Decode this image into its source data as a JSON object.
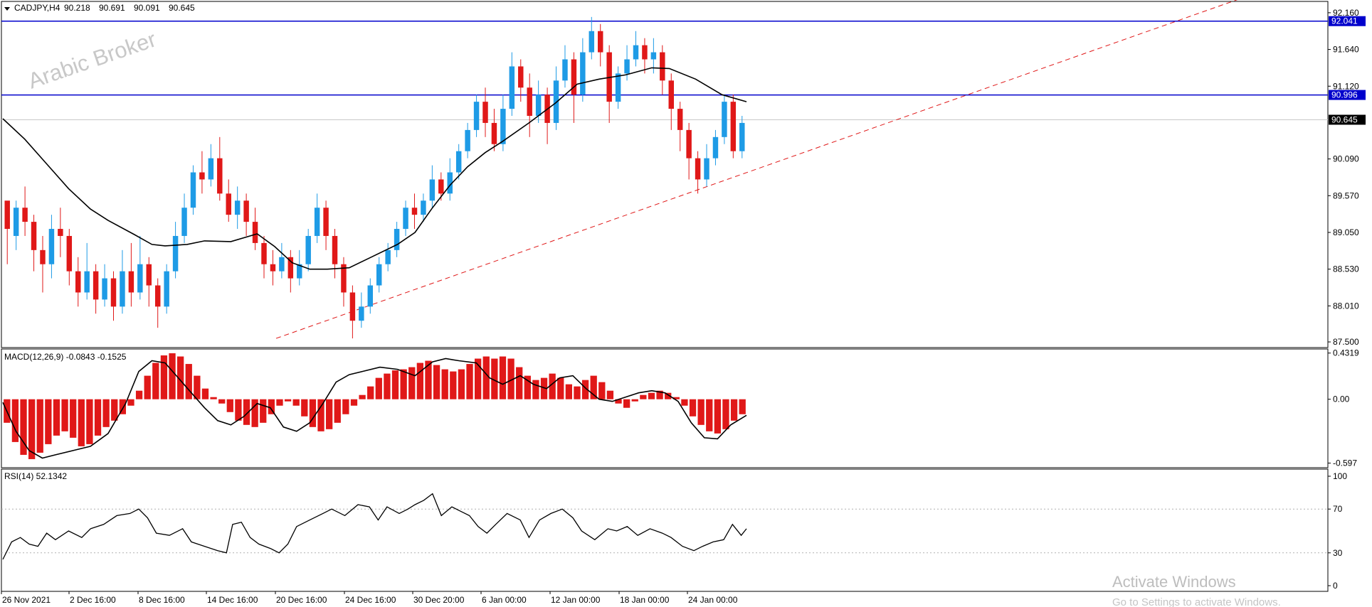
{
  "header": {
    "menu_icon": "triangle-down-icon",
    "symbol": "CADJPY,H4",
    "open": "90.218",
    "high": "90.691",
    "low": "90.091",
    "close": "90.645"
  },
  "watermark": "Arabic Broker",
  "activate_windows": {
    "title": "Activate Windows",
    "subtitle": "Go to Settings to activate Windows."
  },
  "colors": {
    "up": "#1e9be6",
    "down": "#e01818",
    "ma": "#000000",
    "hline": "#0000cc",
    "trendline": "#e01818",
    "macd_hist": "#e01818",
    "badge_blue": "#0000cc",
    "badge_black": "#000000"
  },
  "chart_data": [
    {
      "type": "candlestick",
      "panel": "price",
      "title": "CADJPY,H4",
      "y_ticks": [
        "92.160",
        "91.640",
        "91.120",
        "90.090",
        "89.570",
        "89.050",
        "88.530",
        "88.010",
        "87.500"
      ],
      "ylim": [
        87.42,
        92.32
      ],
      "x_ticks": [
        "26 Nov 2021",
        "2 Dec 16:00",
        "8 Dec 16:00",
        "14 Dec 16:00",
        "20 Dec 16:00",
        "24 Dec 16:00",
        "30 Dec 20:00",
        "6 Jan 00:00",
        "12 Jan 00:00",
        "18 Jan 00:00",
        "24 Jan 00:00"
      ],
      "horizontal_lines": [
        {
          "value": 92.041,
          "label": "92.041"
        },
        {
          "value": 90.996,
          "label": "90.996"
        }
      ],
      "current_price": {
        "value": 90.645,
        "label": "90.645"
      },
      "trendline": {
        "from": {
          "x": "20 Dec 16:00",
          "y": 87.55
        },
        "to": {
          "x": "beyond 24 Jan",
          "y": 92.42
        },
        "style": "dashed"
      },
      "moving_average_path": [
        [
          0,
          90.66
        ],
        [
          25,
          90.37
        ],
        [
          50,
          90.02
        ],
        [
          75,
          89.67
        ],
        [
          100,
          89.38
        ],
        [
          120,
          89.22
        ],
        [
          150,
          89.02
        ],
        [
          170,
          88.88
        ],
        [
          185,
          88.86
        ],
        [
          210,
          88.88
        ],
        [
          230,
          88.93
        ],
        [
          260,
          88.92
        ],
        [
          290,
          89.03
        ],
        [
          310,
          88.85
        ],
        [
          330,
          88.62
        ],
        [
          350,
          88.53
        ],
        [
          370,
          88.53
        ],
        [
          395,
          88.55
        ],
        [
          420,
          88.7
        ],
        [
          450,
          88.88
        ],
        [
          470,
          89.05
        ],
        [
          490,
          89.4
        ],
        [
          510,
          89.72
        ],
        [
          530,
          89.98
        ],
        [
          550,
          90.18
        ],
        [
          570,
          90.34
        ],
        [
          600,
          90.6
        ],
        [
          630,
          90.88
        ],
        [
          655,
          91.15
        ],
        [
          680,
          91.22
        ],
        [
          710,
          91.28
        ],
        [
          740,
          91.38
        ],
        [
          760,
          91.37
        ],
        [
          790,
          91.22
        ],
        [
          820,
          91.0
        ],
        [
          848,
          90.9
        ]
      ],
      "candles": [
        [
          89.5,
          89.1,
          89.3,
          88.6
        ],
        [
          89.0,
          89.4,
          89.5,
          88.8
        ],
        [
          89.4,
          89.2,
          89.7,
          89.0
        ],
        [
          89.2,
          88.8,
          89.3,
          88.5
        ],
        [
          88.8,
          88.6,
          89.0,
          88.2
        ],
        [
          88.6,
          89.1,
          89.3,
          88.4
        ],
        [
          89.1,
          89.0,
          89.4,
          88.7
        ],
        [
          89.0,
          88.5,
          89.1,
          88.3
        ],
        [
          88.5,
          88.2,
          88.7,
          88.0
        ],
        [
          88.2,
          88.5,
          88.9,
          88.1
        ],
        [
          88.5,
          88.1,
          88.6,
          87.9
        ],
        [
          88.1,
          88.4,
          88.6,
          88.0
        ],
        [
          88.4,
          88.0,
          88.5,
          87.8
        ],
        [
          88.0,
          88.5,
          88.8,
          87.9
        ],
        [
          88.5,
          88.2,
          88.9,
          88.0
        ],
        [
          88.2,
          88.6,
          89.0,
          88.1
        ],
        [
          88.6,
          88.3,
          88.7,
          88.0
        ],
        [
          88.3,
          88.0,
          88.4,
          87.7
        ],
        [
          88.0,
          88.5,
          88.6,
          87.9
        ],
        [
          88.5,
          89.0,
          89.2,
          88.4
        ],
        [
          89.0,
          89.4,
          89.6,
          88.9
        ],
        [
          89.4,
          89.9,
          90.0,
          89.3
        ],
        [
          89.9,
          89.8,
          90.2,
          89.6
        ],
        [
          89.8,
          90.1,
          90.3,
          89.7
        ],
        [
          90.1,
          89.6,
          90.4,
          89.5
        ],
        [
          89.6,
          89.3,
          89.8,
          89.2
        ],
        [
          89.3,
          89.5,
          89.7,
          89.1
        ],
        [
          89.5,
          89.2,
          89.6,
          89.0
        ],
        [
          89.2,
          88.9,
          89.4,
          88.8
        ],
        [
          88.9,
          88.6,
          89.0,
          88.4
        ],
        [
          88.6,
          88.5,
          88.8,
          88.3
        ],
        [
          88.5,
          88.7,
          88.9,
          88.4
        ],
        [
          88.7,
          88.4,
          88.8,
          88.2
        ],
        [
          88.4,
          88.6,
          88.8,
          88.3
        ],
        [
          88.6,
          89.0,
          89.1,
          88.5
        ],
        [
          89.0,
          89.4,
          89.6,
          88.9
        ],
        [
          89.4,
          89.0,
          89.5,
          88.8
        ],
        [
          89.0,
          88.6,
          89.1,
          88.4
        ],
        [
          88.6,
          88.2,
          88.7,
          88.0
        ],
        [
          88.2,
          87.8,
          88.3,
          87.55
        ],
        [
          87.8,
          88.0,
          88.2,
          87.7
        ],
        [
          88.0,
          88.3,
          88.4,
          87.9
        ],
        [
          88.3,
          88.6,
          88.7,
          88.2
        ],
        [
          88.6,
          88.8,
          88.9,
          88.5
        ],
        [
          88.8,
          89.1,
          89.2,
          88.7
        ],
        [
          89.1,
          89.4,
          89.5,
          89.0
        ],
        [
          89.4,
          89.3,
          89.6,
          89.1
        ],
        [
          89.3,
          89.5,
          89.6,
          89.2
        ],
        [
          89.5,
          89.8,
          90.0,
          89.4
        ],
        [
          89.8,
          89.6,
          89.9,
          89.5
        ],
        [
          89.6,
          89.9,
          90.1,
          89.5
        ],
        [
          89.9,
          90.2,
          90.3,
          89.8
        ],
        [
          90.2,
          90.5,
          90.6,
          90.1
        ],
        [
          90.5,
          90.9,
          91.0,
          90.4
        ],
        [
          90.9,
          90.6,
          91.1,
          90.4
        ],
        [
          90.6,
          90.3,
          90.8,
          90.2
        ],
        [
          90.3,
          90.8,
          91.0,
          90.2
        ],
        [
          90.8,
          91.4,
          91.6,
          90.7
        ],
        [
          91.4,
          91.1,
          91.5,
          90.9
        ],
        [
          91.1,
          90.7,
          91.3,
          90.4
        ],
        [
          90.7,
          91.0,
          91.2,
          90.6
        ],
        [
          91.0,
          90.6,
          91.1,
          90.3
        ],
        [
          90.6,
          91.2,
          91.4,
          90.5
        ],
        [
          91.2,
          91.5,
          91.7,
          91.1
        ],
        [
          91.5,
          91.0,
          91.6,
          90.6
        ],
        [
          91.0,
          91.6,
          91.8,
          90.9
        ],
        [
          91.6,
          91.9,
          92.1,
          91.5
        ],
        [
          91.9,
          91.6,
          92.0,
          91.4
        ],
        [
          91.6,
          90.9,
          91.7,
          90.6
        ],
        [
          90.9,
          91.3,
          91.4,
          90.8
        ],
        [
          91.3,
          91.5,
          91.7,
          91.2
        ],
        [
          91.5,
          91.7,
          91.9,
          91.4
        ],
        [
          91.7,
          91.5,
          91.8,
          91.3
        ],
        [
          91.5,
          91.6,
          91.8,
          91.3
        ],
        [
          91.6,
          91.2,
          91.7,
          91.0
        ],
        [
          91.2,
          90.8,
          91.3,
          90.5
        ],
        [
          90.8,
          90.5,
          90.9,
          90.2
        ],
        [
          90.5,
          90.1,
          90.6,
          89.8
        ],
        [
          90.1,
          89.8,
          90.2,
          89.6
        ],
        [
          89.8,
          90.1,
          90.3,
          89.7
        ],
        [
          90.1,
          90.4,
          90.5,
          90.0
        ],
        [
          90.4,
          90.9,
          91.0,
          90.3
        ],
        [
          90.9,
          90.2,
          91.0,
          90.1
        ],
        [
          90.2,
          90.6,
          90.7,
          90.1
        ]
      ]
    },
    {
      "type": "bar",
      "panel": "macd",
      "title": "MACD(12,26,9) -0.0843 -0.1525",
      "y_ticks": [
        "0.4319",
        "0.00",
        "-0.597"
      ],
      "ylim": [
        -0.64,
        0.47
      ],
      "histogram": [
        -0.22,
        -0.4,
        -0.52,
        -0.56,
        -0.5,
        -0.42,
        -0.34,
        -0.3,
        -0.36,
        -0.44,
        -0.42,
        -0.34,
        -0.26,
        -0.2,
        -0.14,
        -0.06,
        0.08,
        0.22,
        0.34,
        0.41,
        0.43,
        0.4,
        0.33,
        0.22,
        0.1,
        0.02,
        -0.04,
        -0.12,
        -0.2,
        -0.24,
        -0.26,
        -0.22,
        -0.14,
        -0.06,
        -0.02,
        -0.06,
        -0.16,
        -0.26,
        -0.3,
        -0.28,
        -0.22,
        -0.14,
        -0.06,
        0.04,
        0.12,
        0.2,
        0.24,
        0.27,
        0.28,
        0.3,
        0.34,
        0.36,
        0.32,
        0.28,
        0.26,
        0.28,
        0.33,
        0.38,
        0.4,
        0.38,
        0.4,
        0.38,
        0.3,
        0.22,
        0.18,
        0.2,
        0.24,
        0.2,
        0.14,
        0.12,
        0.18,
        0.22,
        0.16,
        0.08,
        -0.04,
        -0.08,
        -0.02,
        0.04,
        0.06,
        0.08,
        0.06,
        0.02,
        -0.06,
        -0.16,
        -0.24,
        -0.3,
        -0.32,
        -0.28,
        -0.2,
        -0.14
      ],
      "signal_path": [
        [
          0,
          -0.03
        ],
        [
          15,
          -0.3
        ],
        [
          30,
          -0.48
        ],
        [
          45,
          -0.55
        ],
        [
          60,
          -0.52
        ],
        [
          80,
          -0.48
        ],
        [
          100,
          -0.44
        ],
        [
          120,
          -0.32
        ],
        [
          140,
          -0.04
        ],
        [
          155,
          0.26
        ],
        [
          170,
          0.36
        ],
        [
          185,
          0.34
        ],
        [
          200,
          0.2
        ],
        [
          215,
          0.06
        ],
        [
          230,
          -0.08
        ],
        [
          245,
          -0.2
        ],
        [
          260,
          -0.24
        ],
        [
          275,
          -0.16
        ],
        [
          290,
          -0.04
        ],
        [
          305,
          -0.08
        ],
        [
          320,
          -0.26
        ],
        [
          335,
          -0.3
        ],
        [
          350,
          -0.22
        ],
        [
          365,
          -0.04
        ],
        [
          380,
          0.16
        ],
        [
          395,
          0.23
        ],
        [
          410,
          0.26
        ],
        [
          430,
          0.3
        ],
        [
          450,
          0.28
        ],
        [
          470,
          0.22
        ],
        [
          490,
          0.35
        ],
        [
          505,
          0.38
        ],
        [
          520,
          0.36
        ],
        [
          540,
          0.34
        ],
        [
          555,
          0.2
        ],
        [
          570,
          0.14
        ],
        [
          590,
          0.22
        ],
        [
          605,
          0.14
        ],
        [
          620,
          0.1
        ],
        [
          635,
          0.2
        ],
        [
          650,
          0.22
        ],
        [
          665,
          0.1
        ],
        [
          680,
          0.0
        ],
        [
          695,
          -0.02
        ],
        [
          710,
          0.02
        ],
        [
          725,
          0.06
        ],
        [
          740,
          0.08
        ],
        [
          755,
          0.06
        ],
        [
          770,
          -0.02
        ],
        [
          785,
          -0.22
        ],
        [
          800,
          -0.36
        ],
        [
          815,
          -0.37
        ],
        [
          830,
          -0.24
        ],
        [
          848,
          -0.15
        ]
      ]
    },
    {
      "type": "line",
      "panel": "rsi",
      "title": "RSI(14) 52.1342",
      "y_ticks": [
        "100",
        "70",
        "30",
        "0"
      ],
      "ylim": [
        0,
        100
      ],
      "levels": [
        70,
        30
      ],
      "path": [
        [
          0,
          24
        ],
        [
          10,
          40
        ],
        [
          20,
          44
        ],
        [
          30,
          38
        ],
        [
          40,
          36
        ],
        [
          50,
          48
        ],
        [
          60,
          42
        ],
        [
          75,
          50
        ],
        [
          90,
          44
        ],
        [
          100,
          52
        ],
        [
          115,
          56
        ],
        [
          130,
          64
        ],
        [
          145,
          66
        ],
        [
          155,
          70
        ],
        [
          165,
          62
        ],
        [
          175,
          48
        ],
        [
          190,
          46
        ],
        [
          205,
          52
        ],
        [
          215,
          40
        ],
        [
          230,
          36
        ],
        [
          245,
          32
        ],
        [
          255,
          30
        ],
        [
          262,
          56
        ],
        [
          272,
          58
        ],
        [
          282,
          44
        ],
        [
          292,
          38
        ],
        [
          305,
          34
        ],
        [
          315,
          30
        ],
        [
          325,
          38
        ],
        [
          335,
          54
        ],
        [
          350,
          60
        ],
        [
          365,
          66
        ],
        [
          375,
          70
        ],
        [
          390,
          64
        ],
        [
          405,
          74
        ],
        [
          418,
          72
        ],
        [
          428,
          60
        ],
        [
          438,
          72
        ],
        [
          452,
          66
        ],
        [
          462,
          70
        ],
        [
          470,
          74
        ],
        [
          480,
          78
        ],
        [
          490,
          84
        ],
        [
          500,
          64
        ],
        [
          512,
          72
        ],
        [
          522,
          68
        ],
        [
          532,
          64
        ],
        [
          542,
          54
        ],
        [
          552,
          48
        ],
        [
          562,
          56
        ],
        [
          575,
          66
        ],
        [
          590,
          60
        ],
        [
          600,
          44
        ],
        [
          612,
          60
        ],
        [
          625,
          66
        ],
        [
          638,
          70
        ],
        [
          650,
          62
        ],
        [
          660,
          50
        ],
        [
          675,
          42
        ],
        [
          690,
          52
        ],
        [
          700,
          50
        ],
        [
          712,
          54
        ],
        [
          724,
          46
        ],
        [
          738,
          52
        ],
        [
          752,
          48
        ],
        [
          762,
          44
        ],
        [
          775,
          36
        ],
        [
          788,
          32
        ],
        [
          798,
          36
        ],
        [
          810,
          40
        ],
        [
          822,
          42
        ],
        [
          832,
          56
        ],
        [
          842,
          46
        ],
        [
          848,
          52
        ]
      ]
    }
  ]
}
